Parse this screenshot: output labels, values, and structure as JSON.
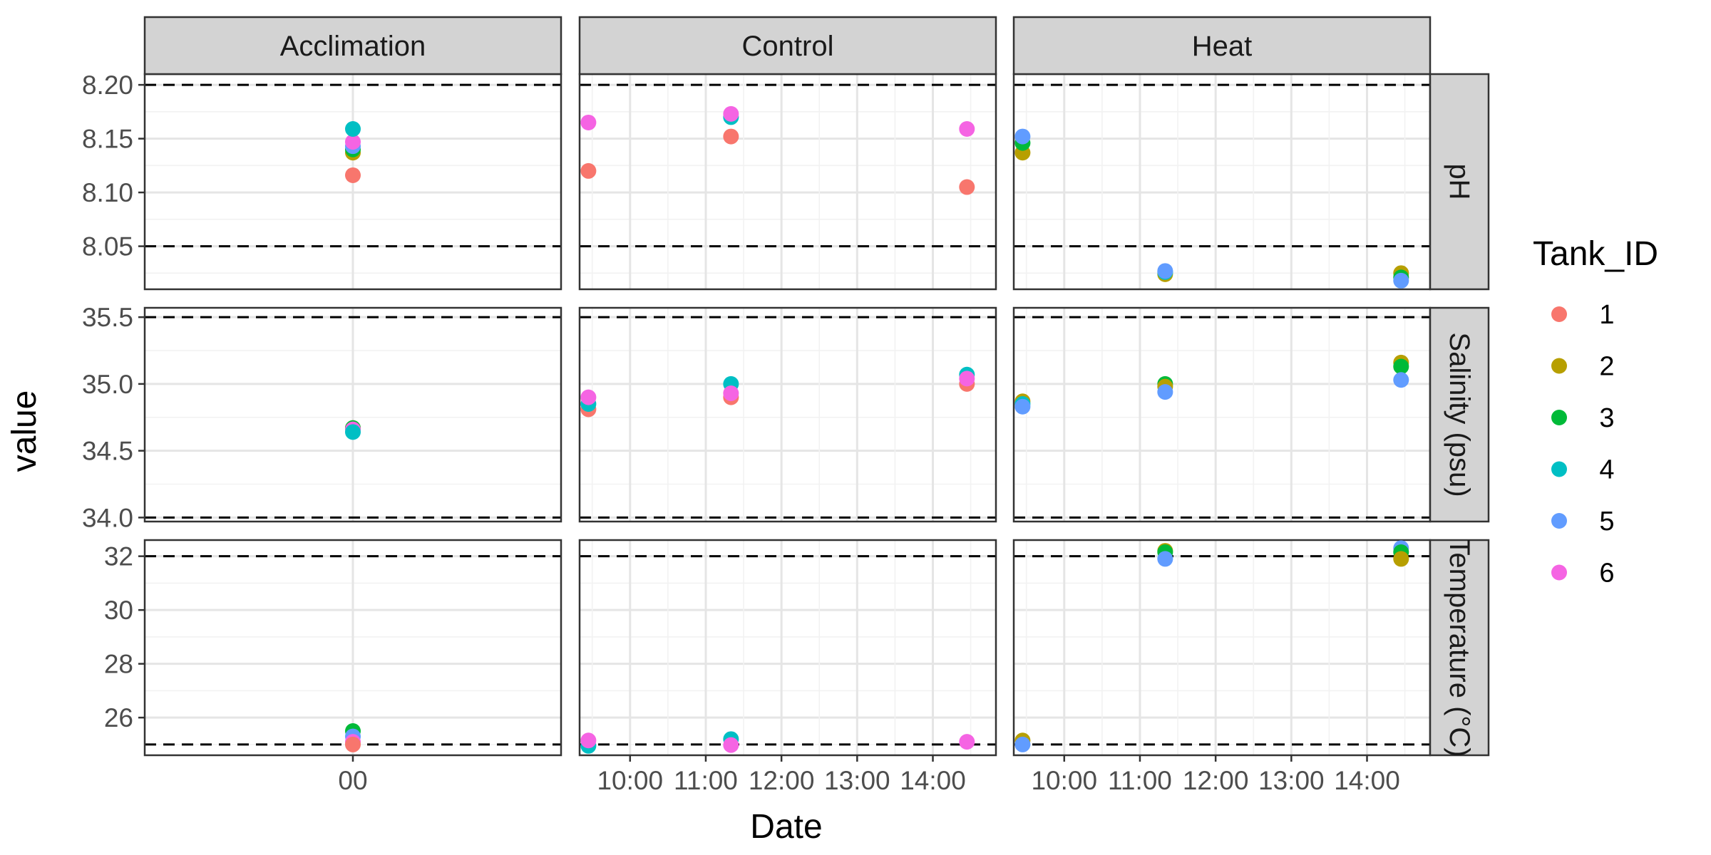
{
  "chart_data": {
    "type": "scatter",
    "xlabel": "Date",
    "ylabel": "value",
    "facet_columns": [
      "Acclimation",
      "Control",
      "Heat"
    ],
    "facet_rows": [
      "pH",
      "Salinity (psu)",
      "Temperature (°C)"
    ],
    "x_ticks": {
      "Acclimation": [
        "00"
      ],
      "Control": [
        "10:00",
        "11:00",
        "12:00",
        "13:00",
        "14:00"
      ],
      "Heat": [
        "10:00",
        "11:00",
        "12:00",
        "13:00",
        "14:00"
      ]
    },
    "time_axis_range": [
      "09:20",
      "14:50"
    ],
    "rows": [
      {
        "name": "pH",
        "ylim": [
          8.01,
          8.21
        ],
        "y_ticks": [
          8.05,
          8.1,
          8.15,
          8.2
        ],
        "tick_labels": [
          "8.05",
          "8.10",
          "8.15",
          "8.20"
        ],
        "reference_lines": [
          8.05,
          8.2
        ]
      },
      {
        "name": "Salinity (psu)",
        "ylim": [
          33.97,
          35.57
        ],
        "y_ticks": [
          34.0,
          34.5,
          35.0,
          35.5
        ],
        "tick_labels": [
          "34.0",
          "34.5",
          "35.0",
          "35.5"
        ],
        "reference_lines": [
          34.0,
          35.5
        ]
      },
      {
        "name": "Temperature (°C)",
        "ylim": [
          24.6,
          32.6
        ],
        "y_ticks": [
          26,
          28,
          30,
          32
        ],
        "tick_labels": [
          "26",
          "28",
          "30",
          "32"
        ],
        "reference_lines": [
          25,
          32
        ]
      }
    ],
    "legend": {
      "title": "Tank_ID",
      "position": "right",
      "entries": [
        {
          "label": "1",
          "color": "#F8766D"
        },
        {
          "label": "2",
          "color": "#B79F00"
        },
        {
          "label": "3",
          "color": "#00BA38"
        },
        {
          "label": "4",
          "color": "#00BFC4"
        },
        {
          "label": "5",
          "color": "#619CFF"
        },
        {
          "label": "6",
          "color": "#F564E3"
        }
      ]
    },
    "grid": true,
    "points": [
      {
        "col": "Acclimation",
        "row": "pH",
        "x": "00",
        "tank": "1",
        "y": 8.116
      },
      {
        "col": "Acclimation",
        "row": "pH",
        "x": "00",
        "tank": "2",
        "y": 8.137
      },
      {
        "col": "Acclimation",
        "row": "pH",
        "x": "00",
        "tank": "3",
        "y": 8.14
      },
      {
        "col": "Acclimation",
        "row": "pH",
        "x": "00",
        "tank": "5",
        "y": 8.143
      },
      {
        "col": "Acclimation",
        "row": "pH",
        "x": "00",
        "tank": "6",
        "y": 8.147
      },
      {
        "col": "Acclimation",
        "row": "pH",
        "x": "00",
        "tank": "4",
        "y": 8.159
      },
      {
        "col": "Acclimation",
        "row": "Salinity (psu)",
        "x": "00",
        "tank": "2",
        "y": 34.67
      },
      {
        "col": "Acclimation",
        "row": "Salinity (psu)",
        "x": "00",
        "tank": "3",
        "y": 34.67
      },
      {
        "col": "Acclimation",
        "row": "Salinity (psu)",
        "x": "00",
        "tank": "6",
        "y": 34.66
      },
      {
        "col": "Acclimation",
        "row": "Salinity (psu)",
        "x": "00",
        "tank": "4",
        "y": 34.64
      },
      {
        "col": "Acclimation",
        "row": "Temperature (°C)",
        "x": "00",
        "tank": "3",
        "y": 25.5
      },
      {
        "col": "Acclimation",
        "row": "Temperature (°C)",
        "x": "00",
        "tank": "5",
        "y": 25.3
      },
      {
        "col": "Acclimation",
        "row": "Temperature (°C)",
        "x": "00",
        "tank": "6",
        "y": 25.1
      },
      {
        "col": "Acclimation",
        "row": "Temperature (°C)",
        "x": "00",
        "tank": "1",
        "y": 25.0
      },
      {
        "col": "Control",
        "row": "pH",
        "x": "09:27",
        "tank": "1",
        "y": 8.12
      },
      {
        "col": "Control",
        "row": "pH",
        "x": "09:27",
        "tank": "6",
        "y": 8.165
      },
      {
        "col": "Control",
        "row": "pH",
        "x": "11:20",
        "tank": "1",
        "y": 8.152
      },
      {
        "col": "Control",
        "row": "pH",
        "x": "11:20",
        "tank": "4",
        "y": 8.17
      },
      {
        "col": "Control",
        "row": "pH",
        "x": "11:20",
        "tank": "6",
        "y": 8.173
      },
      {
        "col": "Control",
        "row": "pH",
        "x": "14:27",
        "tank": "1",
        "y": 8.105
      },
      {
        "col": "Control",
        "row": "pH",
        "x": "14:27",
        "tank": "6",
        "y": 8.159
      },
      {
        "col": "Control",
        "row": "Salinity (psu)",
        "x": "09:27",
        "tank": "1",
        "y": 34.81
      },
      {
        "col": "Control",
        "row": "Salinity (psu)",
        "x": "09:27",
        "tank": "4",
        "y": 34.85
      },
      {
        "col": "Control",
        "row": "Salinity (psu)",
        "x": "09:27",
        "tank": "6",
        "y": 34.9
      },
      {
        "col": "Control",
        "row": "Salinity (psu)",
        "x": "11:20",
        "tank": "1",
        "y": 34.9
      },
      {
        "col": "Control",
        "row": "Salinity (psu)",
        "x": "11:20",
        "tank": "4",
        "y": 35.0
      },
      {
        "col": "Control",
        "row": "Salinity (psu)",
        "x": "11:20",
        "tank": "6",
        "y": 34.93
      },
      {
        "col": "Control",
        "row": "Salinity (psu)",
        "x": "14:27",
        "tank": "1",
        "y": 35.0
      },
      {
        "col": "Control",
        "row": "Salinity (psu)",
        "x": "14:27",
        "tank": "4",
        "y": 35.07
      },
      {
        "col": "Control",
        "row": "Salinity (psu)",
        "x": "14:27",
        "tank": "6",
        "y": 35.04
      },
      {
        "col": "Control",
        "row": "Temperature (°C)",
        "x": "09:27",
        "tank": "4",
        "y": 24.95
      },
      {
        "col": "Control",
        "row": "Temperature (°C)",
        "x": "09:27",
        "tank": "6",
        "y": 25.15
      },
      {
        "col": "Control",
        "row": "Temperature (°C)",
        "x": "11:20",
        "tank": "4",
        "y": 25.2
      },
      {
        "col": "Control",
        "row": "Temperature (°C)",
        "x": "11:20",
        "tank": "6",
        "y": 24.98
      },
      {
        "col": "Control",
        "row": "Temperature (°C)",
        "x": "14:27",
        "tank": "6",
        "y": 25.1
      },
      {
        "col": "Heat",
        "row": "pH",
        "x": "09:27",
        "tank": "2",
        "y": 8.137
      },
      {
        "col": "Heat",
        "row": "pH",
        "x": "09:27",
        "tank": "3",
        "y": 8.146
      },
      {
        "col": "Heat",
        "row": "pH",
        "x": "09:27",
        "tank": "5",
        "y": 8.152
      },
      {
        "col": "Heat",
        "row": "pH",
        "x": "11:20",
        "tank": "2",
        "y": 8.024
      },
      {
        "col": "Heat",
        "row": "pH",
        "x": "11:20",
        "tank": "4",
        "y": 8.026
      },
      {
        "col": "Heat",
        "row": "pH",
        "x": "11:20",
        "tank": "5",
        "y": 8.027
      },
      {
        "col": "Heat",
        "row": "pH",
        "x": "14:27",
        "tank": "2",
        "y": 8.025
      },
      {
        "col": "Heat",
        "row": "pH",
        "x": "14:27",
        "tank": "3",
        "y": 8.021
      },
      {
        "col": "Heat",
        "row": "pH",
        "x": "14:27",
        "tank": "5",
        "y": 8.018
      },
      {
        "col": "Heat",
        "row": "Salinity (psu)",
        "x": "09:27",
        "tank": "2",
        "y": 34.87
      },
      {
        "col": "Heat",
        "row": "Salinity (psu)",
        "x": "09:27",
        "tank": "4",
        "y": 34.85
      },
      {
        "col": "Heat",
        "row": "Salinity (psu)",
        "x": "09:27",
        "tank": "5",
        "y": 34.83
      },
      {
        "col": "Heat",
        "row": "Salinity (psu)",
        "x": "11:20",
        "tank": "3",
        "y": 35.0
      },
      {
        "col": "Heat",
        "row": "Salinity (psu)",
        "x": "11:20",
        "tank": "2",
        "y": 34.98
      },
      {
        "col": "Heat",
        "row": "Salinity (psu)",
        "x": "11:20",
        "tank": "5",
        "y": 34.94
      },
      {
        "col": "Heat",
        "row": "Salinity (psu)",
        "x": "14:27",
        "tank": "2",
        "y": 35.16
      },
      {
        "col": "Heat",
        "row": "Salinity (psu)",
        "x": "14:27",
        "tank": "3",
        "y": 35.13
      },
      {
        "col": "Heat",
        "row": "Salinity (psu)",
        "x": "14:27",
        "tank": "5",
        "y": 35.03
      },
      {
        "col": "Heat",
        "row": "Temperature (°C)",
        "x": "09:27",
        "tank": "2",
        "y": 25.15
      },
      {
        "col": "Heat",
        "row": "Temperature (°C)",
        "x": "09:27",
        "tank": "5",
        "y": 25.0
      },
      {
        "col": "Heat",
        "row": "Temperature (°C)",
        "x": "11:20",
        "tank": "2",
        "y": 32.2
      },
      {
        "col": "Heat",
        "row": "Temperature (°C)",
        "x": "11:20",
        "tank": "3",
        "y": 32.15
      },
      {
        "col": "Heat",
        "row": "Temperature (°C)",
        "x": "11:20",
        "tank": "5",
        "y": 31.9
      },
      {
        "col": "Heat",
        "row": "Temperature (°C)",
        "x": "14:27",
        "tank": "5",
        "y": 32.3
      },
      {
        "col": "Heat",
        "row": "Temperature (°C)",
        "x": "14:27",
        "tank": "3",
        "y": 32.15
      },
      {
        "col": "Heat",
        "row": "Temperature (°C)",
        "x": "14:27",
        "tank": "2",
        "y": 31.9
      }
    ]
  }
}
